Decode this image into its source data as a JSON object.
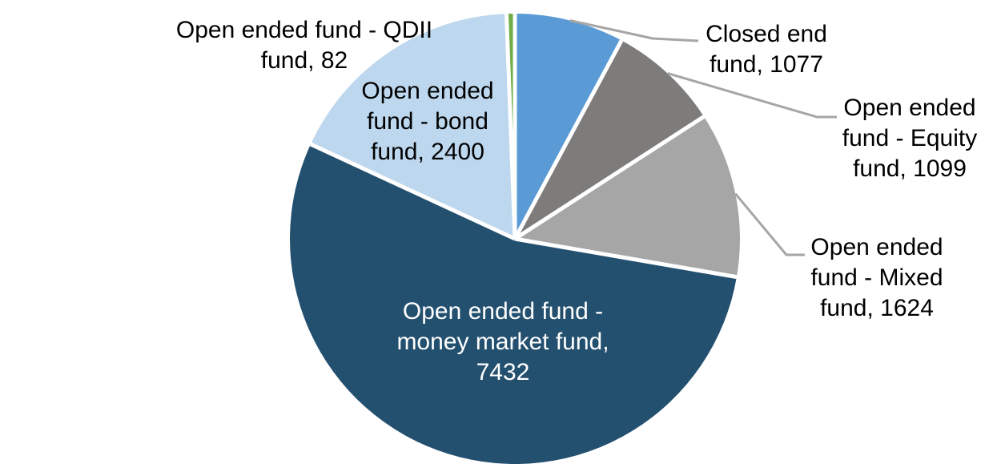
{
  "chart_data": {
    "type": "pie",
    "title": "",
    "legend_position": "none",
    "label_format": "name, value",
    "total": 13714,
    "start_angle_deg": 0,
    "direction": "clockwise",
    "colors": {
      "background": "#FFFFFF",
      "separator": "#FFFFFF",
      "leader_line": "#A6A6A6"
    },
    "series": [
      {
        "id": "closed-end-fund",
        "name": "Closed end fund",
        "value": 1077,
        "color": "#5B9BD5",
        "label_placement": "outside-right",
        "label_color": "#000000",
        "label_lines": [
          "Closed end",
          "fund, 1077"
        ]
      },
      {
        "id": "open-ended-equity-fund",
        "name": "Open ended fund - Equity fund",
        "value": 1099,
        "color": "#7E7B7B",
        "label_placement": "outside-right",
        "label_color": "#000000",
        "label_lines": [
          "Open ended",
          "fund - Equity",
          "fund, 1099"
        ]
      },
      {
        "id": "open-ended-mixed-fund",
        "name": "Open ended fund - Mixed fund",
        "value": 1624,
        "color": "#A6A6A6",
        "label_placement": "outside-right",
        "label_color": "#000000",
        "label_lines": [
          "Open ended",
          "fund - Mixed",
          "fund, 1624"
        ]
      },
      {
        "id": "open-ended-money-market-fund",
        "name": "Open ended fund - money market fund",
        "value": 7432,
        "color": "#24506F",
        "label_placement": "inside",
        "label_color": "#FFFFFF",
        "label_lines": [
          "Open ended fund -",
          "money market fund,",
          "7432"
        ]
      },
      {
        "id": "open-ended-bond-fund",
        "name": "Open ended fund - bond fund",
        "value": 2400,
        "color": "#BDD7EE",
        "label_placement": "inside",
        "label_color": "#000000",
        "label_lines": [
          "Open ended",
          "fund - bond",
          "fund, 2400"
        ]
      },
      {
        "id": "open-ended-qdii-fund",
        "name": "Open ended fund - QDII fund",
        "value": 82,
        "color": "#70AD47",
        "label_placement": "outside-left",
        "label_color": "#000000",
        "label_lines": [
          "Open ended fund - QDII",
          "fund, 82"
        ]
      }
    ]
  }
}
